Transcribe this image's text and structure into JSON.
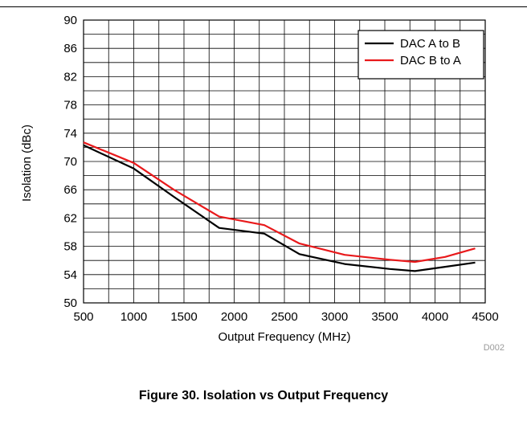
{
  "caption": "Figure 30. Isolation vs Output Frequency",
  "chart_data": {
    "type": "line",
    "xlabel": "Output Frequency (MHz)",
    "ylabel": "Isolation (dBc)",
    "code": "D002",
    "xlim": [
      500,
      4500
    ],
    "ylim": [
      50,
      90
    ],
    "xticks": [
      500,
      1000,
      1500,
      2000,
      2500,
      3000,
      3500,
      4000,
      4500
    ],
    "yticks": [
      50,
      54,
      58,
      62,
      66,
      70,
      74,
      78,
      82,
      86,
      90
    ],
    "grid": true,
    "legend_position": "top-right",
    "series": [
      {
        "name": "DAC A to B",
        "color": "#000000",
        "x": [
          500,
          1000,
          1400,
          1850,
          2300,
          2650,
          3100,
          3550,
          3800,
          4100,
          4400
        ],
        "y": [
          72.3,
          69.0,
          65.0,
          60.6,
          59.8,
          56.9,
          55.5,
          54.8,
          54.5,
          55.1,
          55.7
        ]
      },
      {
        "name": "DAC B to A",
        "color": "#e8191b",
        "x": [
          500,
          1000,
          1400,
          1850,
          2300,
          2650,
          3100,
          3550,
          3800,
          4100,
          4400
        ],
        "y": [
          72.7,
          69.8,
          66.0,
          62.2,
          61.0,
          58.4,
          56.8,
          56.1,
          55.8,
          56.5,
          57.7
        ]
      }
    ]
  }
}
